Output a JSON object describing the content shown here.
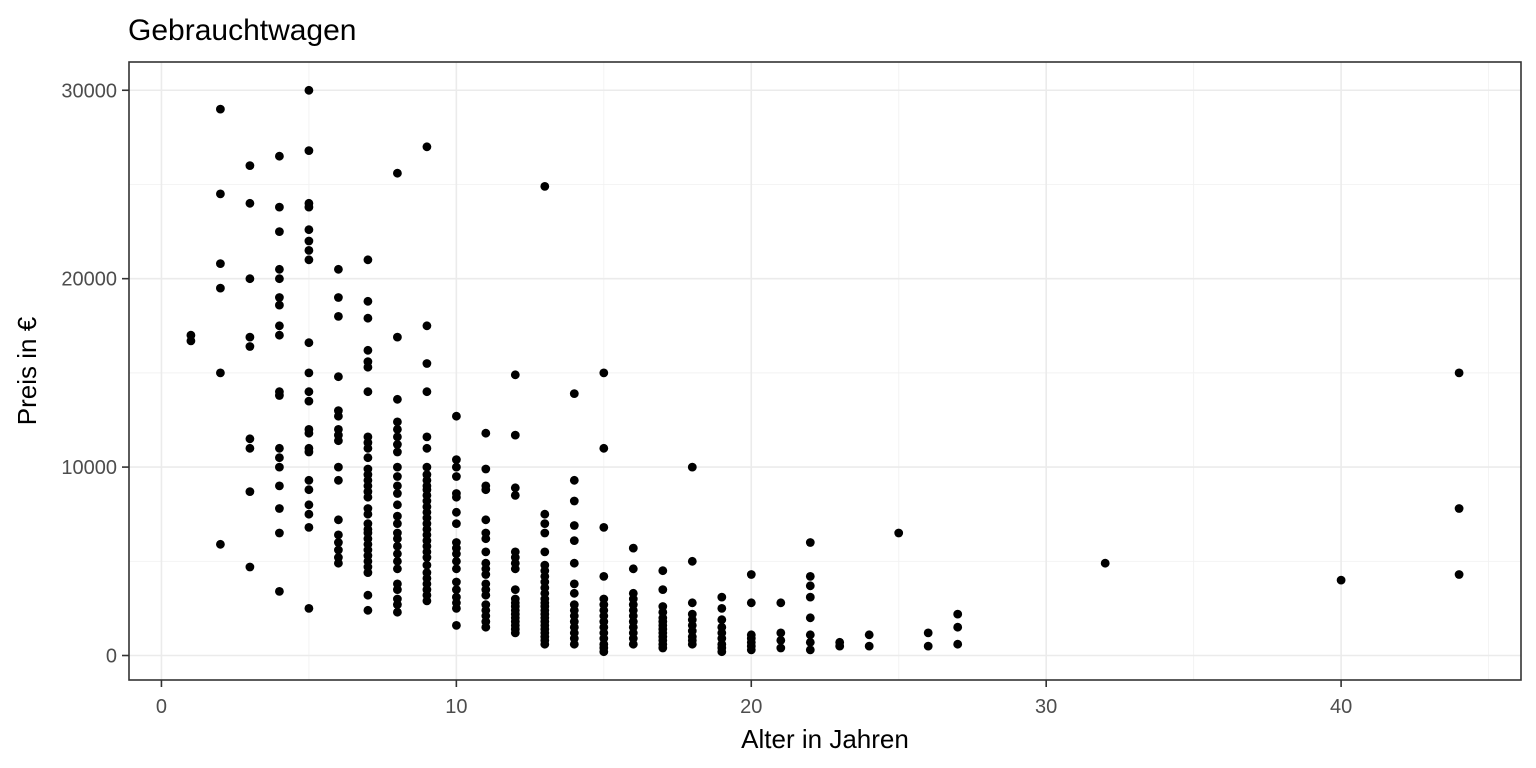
{
  "chart_data": {
    "type": "scatter",
    "title": "Gebrauchtwagen",
    "xlabel": "Alter in Jahren",
    "ylabel": "Preis in €",
    "xlim": [
      -1.1,
      46.1
    ],
    "ylim": [
      -1300,
      31500
    ],
    "x_ticks": [
      0,
      10,
      20,
      30,
      40
    ],
    "y_ticks": [
      0,
      10000,
      20000,
      30000
    ],
    "grid": true,
    "legend": "none",
    "point_color": "#000000",
    "points": [
      [
        1,
        17000
      ],
      [
        1,
        16700
      ],
      [
        2,
        29000
      ],
      [
        2,
        24500
      ],
      [
        2,
        20800
      ],
      [
        2,
        19500
      ],
      [
        2,
        15000
      ],
      [
        2,
        5900
      ],
      [
        3,
        26000
      ],
      [
        3,
        24000
      ],
      [
        3,
        20000
      ],
      [
        3,
        16900
      ],
      [
        3,
        16400
      ],
      [
        3,
        11500
      ],
      [
        3,
        11000
      ],
      [
        3,
        8700
      ],
      [
        3,
        4700
      ],
      [
        4,
        26500
      ],
      [
        4,
        23800
      ],
      [
        4,
        22500
      ],
      [
        4,
        20500
      ],
      [
        4,
        20000
      ],
      [
        4,
        19000
      ],
      [
        4,
        18600
      ],
      [
        4,
        17500
      ],
      [
        4,
        17000
      ],
      [
        4,
        14000
      ],
      [
        4,
        13800
      ],
      [
        4,
        11000
      ],
      [
        4,
        10500
      ],
      [
        4,
        10000
      ],
      [
        4,
        9000
      ],
      [
        4,
        7800
      ],
      [
        4,
        6500
      ],
      [
        4,
        3400
      ],
      [
        5,
        30000
      ],
      [
        5,
        26800
      ],
      [
        5,
        24000
      ],
      [
        5,
        23800
      ],
      [
        5,
        22600
      ],
      [
        5,
        22000
      ],
      [
        5,
        21500
      ],
      [
        5,
        21000
      ],
      [
        5,
        16600
      ],
      [
        5,
        15000
      ],
      [
        5,
        14000
      ],
      [
        5,
        13500
      ],
      [
        5,
        12000
      ],
      [
        5,
        11800
      ],
      [
        5,
        11000
      ],
      [
        5,
        10800
      ],
      [
        5,
        9300
      ],
      [
        5,
        8800
      ],
      [
        5,
        8000
      ],
      [
        5,
        7500
      ],
      [
        5,
        6800
      ],
      [
        5,
        2500
      ],
      [
        6,
        20500
      ],
      [
        6,
        19000
      ],
      [
        6,
        18000
      ],
      [
        6,
        14800
      ],
      [
        6,
        13000
      ],
      [
        6,
        12700
      ],
      [
        6,
        12000
      ],
      [
        6,
        11700
      ],
      [
        6,
        11400
      ],
      [
        6,
        10000
      ],
      [
        6,
        9300
      ],
      [
        6,
        7200
      ],
      [
        6,
        6400
      ],
      [
        6,
        6000
      ],
      [
        6,
        5600
      ],
      [
        6,
        5200
      ],
      [
        6,
        4900
      ],
      [
        7,
        21000
      ],
      [
        7,
        18800
      ],
      [
        7,
        17900
      ],
      [
        7,
        16200
      ],
      [
        7,
        15600
      ],
      [
        7,
        15300
      ],
      [
        7,
        14000
      ],
      [
        7,
        11600
      ],
      [
        7,
        11300
      ],
      [
        7,
        11000
      ],
      [
        7,
        10500
      ],
      [
        7,
        9900
      ],
      [
        7,
        9600
      ],
      [
        7,
        9300
      ],
      [
        7,
        9000
      ],
      [
        7,
        8700
      ],
      [
        7,
        8400
      ],
      [
        7,
        7800
      ],
      [
        7,
        7500
      ],
      [
        7,
        7000
      ],
      [
        7,
        6700
      ],
      [
        7,
        6500
      ],
      [
        7,
        6200
      ],
      [
        7,
        5900
      ],
      [
        7,
        5600
      ],
      [
        7,
        5300
      ],
      [
        7,
        5000
      ],
      [
        7,
        4700
      ],
      [
        7,
        4400
      ],
      [
        7,
        3200
      ],
      [
        7,
        2400
      ],
      [
        8,
        25600
      ],
      [
        8,
        16900
      ],
      [
        8,
        13600
      ],
      [
        8,
        12400
      ],
      [
        8,
        12000
      ],
      [
        8,
        11600
      ],
      [
        8,
        11200
      ],
      [
        8,
        10800
      ],
      [
        8,
        10000
      ],
      [
        8,
        9500
      ],
      [
        8,
        9000
      ],
      [
        8,
        8600
      ],
      [
        8,
        8000
      ],
      [
        8,
        7400
      ],
      [
        8,
        7000
      ],
      [
        8,
        6500
      ],
      [
        8,
        6200
      ],
      [
        8,
        5800
      ],
      [
        8,
        5400
      ],
      [
        8,
        5000
      ],
      [
        8,
        4600
      ],
      [
        8,
        3800
      ],
      [
        8,
        3500
      ],
      [
        8,
        3000
      ],
      [
        8,
        2700
      ],
      [
        8,
        2300
      ],
      [
        9,
        27000
      ],
      [
        9,
        17500
      ],
      [
        9,
        15500
      ],
      [
        9,
        14000
      ],
      [
        9,
        11600
      ],
      [
        9,
        11000
      ],
      [
        9,
        10000
      ],
      [
        9,
        9600
      ],
      [
        9,
        9300
      ],
      [
        9,
        9000
      ],
      [
        9,
        8800
      ],
      [
        9,
        8500
      ],
      [
        9,
        8200
      ],
      [
        9,
        7900
      ],
      [
        9,
        7600
      ],
      [
        9,
        7300
      ],
      [
        9,
        7000
      ],
      [
        9,
        6700
      ],
      [
        9,
        6400
      ],
      [
        9,
        6100
      ],
      [
        9,
        5800
      ],
      [
        9,
        5500
      ],
      [
        9,
        5200
      ],
      [
        9,
        4800
      ],
      [
        9,
        4400
      ],
      [
        9,
        4100
      ],
      [
        9,
        3800
      ],
      [
        9,
        3500
      ],
      [
        9,
        3200
      ],
      [
        9,
        2900
      ],
      [
        10,
        12700
      ],
      [
        10,
        10400
      ],
      [
        10,
        10000
      ],
      [
        10,
        9500
      ],
      [
        10,
        8600
      ],
      [
        10,
        8400
      ],
      [
        10,
        7600
      ],
      [
        10,
        7000
      ],
      [
        10,
        6000
      ],
      [
        10,
        5700
      ],
      [
        10,
        5400
      ],
      [
        10,
        5000
      ],
      [
        10,
        4600
      ],
      [
        10,
        3900
      ],
      [
        10,
        3500
      ],
      [
        10,
        3100
      ],
      [
        10,
        2800
      ],
      [
        10,
        2500
      ],
      [
        10,
        1600
      ],
      [
        11,
        11800
      ],
      [
        11,
        9900
      ],
      [
        11,
        9000
      ],
      [
        11,
        8800
      ],
      [
        11,
        7200
      ],
      [
        11,
        6500
      ],
      [
        11,
        6200
      ],
      [
        11,
        5500
      ],
      [
        11,
        4900
      ],
      [
        11,
        4600
      ],
      [
        11,
        4300
      ],
      [
        11,
        3800
      ],
      [
        11,
        3500
      ],
      [
        11,
        3200
      ],
      [
        11,
        2700
      ],
      [
        11,
        2400
      ],
      [
        11,
        2100
      ],
      [
        11,
        1800
      ],
      [
        11,
        1500
      ],
      [
        12,
        14900
      ],
      [
        12,
        11700
      ],
      [
        12,
        8900
      ],
      [
        12,
        8500
      ],
      [
        12,
        5500
      ],
      [
        12,
        5200
      ],
      [
        12,
        4900
      ],
      [
        12,
        4600
      ],
      [
        12,
        3500
      ],
      [
        12,
        3000
      ],
      [
        12,
        2800
      ],
      [
        12,
        2600
      ],
      [
        12,
        2400
      ],
      [
        12,
        2200
      ],
      [
        12,
        2000
      ],
      [
        12,
        1800
      ],
      [
        12,
        1600
      ],
      [
        12,
        1400
      ],
      [
        12,
        1200
      ],
      [
        13,
        24900
      ],
      [
        13,
        7500
      ],
      [
        13,
        7000
      ],
      [
        13,
        6500
      ],
      [
        13,
        5500
      ],
      [
        13,
        4800
      ],
      [
        13,
        4500
      ],
      [
        13,
        4200
      ],
      [
        13,
        3900
      ],
      [
        13,
        3600
      ],
      [
        13,
        3300
      ],
      [
        13,
        3000
      ],
      [
        13,
        2800
      ],
      [
        13,
        2600
      ],
      [
        13,
        2400
      ],
      [
        13,
        2200
      ],
      [
        13,
        2000
      ],
      [
        13,
        1800
      ],
      [
        13,
        1600
      ],
      [
        13,
        1400
      ],
      [
        13,
        1200
      ],
      [
        13,
        1000
      ],
      [
        13,
        800
      ],
      [
        13,
        600
      ],
      [
        14,
        13900
      ],
      [
        14,
        9300
      ],
      [
        14,
        8200
      ],
      [
        14,
        6900
      ],
      [
        14,
        6100
      ],
      [
        14,
        4900
      ],
      [
        14,
        3800
      ],
      [
        14,
        3300
      ],
      [
        14,
        2700
      ],
      [
        14,
        2400
      ],
      [
        14,
        2100
      ],
      [
        14,
        1800
      ],
      [
        14,
        1500
      ],
      [
        14,
        1200
      ],
      [
        14,
        900
      ],
      [
        14,
        600
      ],
      [
        15,
        15000
      ],
      [
        15,
        11000
      ],
      [
        15,
        6800
      ],
      [
        15,
        4200
      ],
      [
        15,
        3000
      ],
      [
        15,
        2700
      ],
      [
        15,
        2400
      ],
      [
        15,
        2100
      ],
      [
        15,
        1800
      ],
      [
        15,
        1500
      ],
      [
        15,
        1200
      ],
      [
        15,
        900
      ],
      [
        15,
        600
      ],
      [
        15,
        400
      ],
      [
        15,
        200
      ],
      [
        16,
        5700
      ],
      [
        16,
        4600
      ],
      [
        16,
        3300
      ],
      [
        16,
        3000
      ],
      [
        16,
        2700
      ],
      [
        16,
        2400
      ],
      [
        16,
        2100
      ],
      [
        16,
        1800
      ],
      [
        16,
        1500
      ],
      [
        16,
        1200
      ],
      [
        16,
        900
      ],
      [
        16,
        600
      ],
      [
        17,
        4500
      ],
      [
        17,
        3500
      ],
      [
        17,
        2600
      ],
      [
        17,
        2300
      ],
      [
        17,
        2000
      ],
      [
        17,
        1800
      ],
      [
        17,
        1600
      ],
      [
        17,
        1400
      ],
      [
        17,
        1200
      ],
      [
        17,
        1000
      ],
      [
        17,
        800
      ],
      [
        17,
        600
      ],
      [
        17,
        400
      ],
      [
        18,
        10000
      ],
      [
        18,
        5000
      ],
      [
        18,
        2800
      ],
      [
        18,
        2200
      ],
      [
        18,
        1900
      ],
      [
        18,
        1600
      ],
      [
        18,
        1300
      ],
      [
        18,
        1000
      ],
      [
        18,
        800
      ],
      [
        18,
        600
      ],
      [
        19,
        3100
      ],
      [
        19,
        2500
      ],
      [
        19,
        1900
      ],
      [
        19,
        1500
      ],
      [
        19,
        1200
      ],
      [
        19,
        900
      ],
      [
        19,
        600
      ],
      [
        19,
        400
      ],
      [
        19,
        200
      ],
      [
        20,
        4300
      ],
      [
        20,
        2800
      ],
      [
        20,
        1100
      ],
      [
        20,
        900
      ],
      [
        20,
        700
      ],
      [
        20,
        500
      ],
      [
        20,
        300
      ],
      [
        21,
        2800
      ],
      [
        21,
        1200
      ],
      [
        21,
        800
      ],
      [
        21,
        400
      ],
      [
        22,
        6000
      ],
      [
        22,
        4200
      ],
      [
        22,
        3700
      ],
      [
        22,
        3100
      ],
      [
        22,
        2000
      ],
      [
        22,
        1100
      ],
      [
        22,
        700
      ],
      [
        22,
        300
      ],
      [
        23,
        700
      ],
      [
        23,
        500
      ],
      [
        24,
        1100
      ],
      [
        24,
        500
      ],
      [
        25,
        6500
      ],
      [
        26,
        1200
      ],
      [
        26,
        500
      ],
      [
        27,
        2200
      ],
      [
        27,
        1500
      ],
      [
        27,
        600
      ],
      [
        32,
        4900
      ],
      [
        40,
        4000
      ],
      [
        44,
        15000
      ],
      [
        44,
        7800
      ],
      [
        44,
        4300
      ]
    ]
  }
}
